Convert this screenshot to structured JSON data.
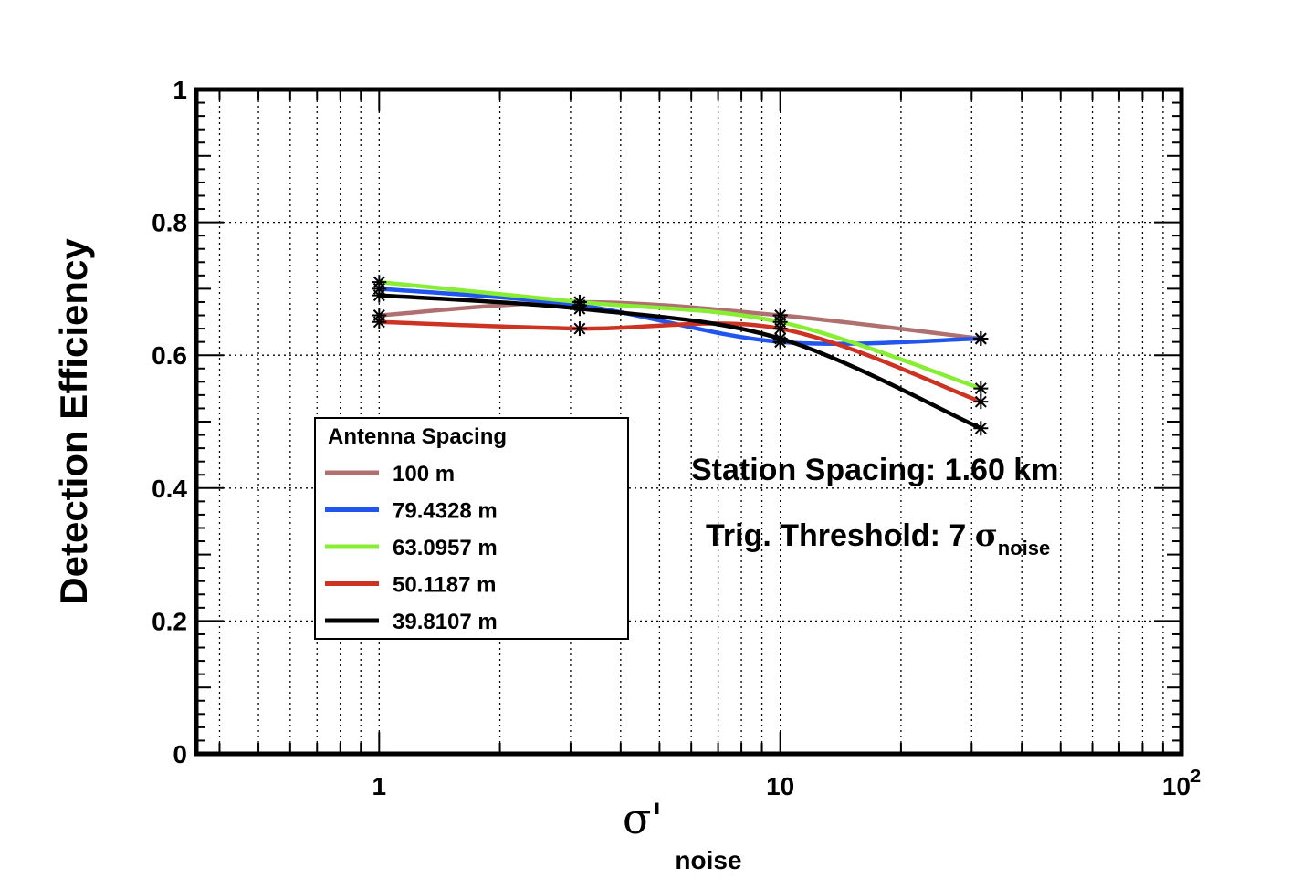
{
  "chart_data": {
    "type": "line",
    "title": "",
    "xlabel": "σ'",
    "xlabel_sub": "noise",
    "ylabel": "Detection Efficiency",
    "xscale": "log",
    "xlim": [
      0.35,
      100
    ],
    "ylim": [
      0,
      1
    ],
    "grid": true,
    "x_ticks": [
      {
        "value": 1,
        "label": "1"
      },
      {
        "value": 10,
        "label": "10"
      },
      {
        "value": 100,
        "label": "10",
        "sup": "2"
      }
    ],
    "y_ticks": [
      {
        "value": 0,
        "label": "0"
      },
      {
        "value": 0.2,
        "label": "0.2"
      },
      {
        "value": 0.4,
        "label": "0.4"
      },
      {
        "value": 0.6,
        "label": "0.6"
      },
      {
        "value": 0.8,
        "label": "0.8"
      },
      {
        "value": 1,
        "label": "1"
      }
    ],
    "x": [
      1,
      3.162,
      10,
      31.62
    ],
    "series": [
      {
        "name": "100 m",
        "color": "#b07070",
        "values": [
          0.66,
          0.68,
          0.66,
          0.625
        ]
      },
      {
        "name": "79.4328 m",
        "color": "#2255ee",
        "values": [
          0.7,
          0.675,
          0.62,
          0.625
        ]
      },
      {
        "name": "63.0957 m",
        "color": "#88ee33",
        "values": [
          0.71,
          0.68,
          0.65,
          0.55
        ]
      },
      {
        "name": "50.1187 m",
        "color": "#cc3322",
        "values": [
          0.65,
          0.64,
          0.64,
          0.53
        ]
      },
      {
        "name": "39.8107 m",
        "color": "#000000",
        "values": [
          0.69,
          0.67,
          0.625,
          0.49
        ]
      }
    ],
    "legend": {
      "title": "Antenna Spacing",
      "position": "center-left"
    },
    "annotations": {
      "station_spacing": "Station Spacing: 1.60 km",
      "threshold_prefix": "Trig. Threshold: 7 ",
      "threshold_sigma": "σ",
      "threshold_sub": "noise"
    }
  }
}
